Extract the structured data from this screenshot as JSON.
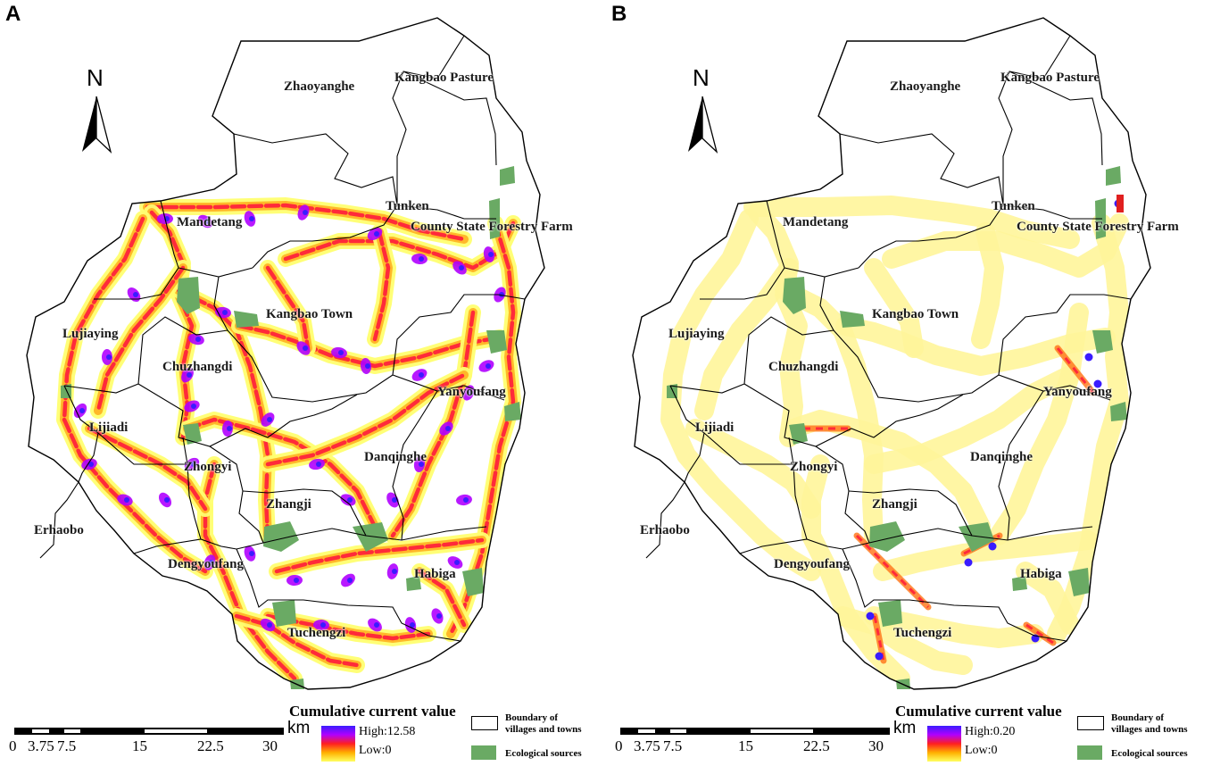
{
  "panels": [
    {
      "letter": "A",
      "towns": [
        "Zhaoyanghe",
        "Kangbao Pasture",
        "Tunken",
        "Mandetang",
        "County State Forestry Farm",
        "Kangbao Town",
        "Lujiaying",
        "Chuzhangdi",
        "Yanyoufang",
        "Lijiadi",
        "Danqinghe",
        "Zhongyi",
        "Zhangji",
        "Erhaobo",
        "Dengyoufang",
        "Habiga",
        "Tuchengzi"
      ],
      "legend_title": "Cumulative current value",
      "high_label": "High:12.58",
      "low_label": "Low:0",
      "intensity": "high"
    },
    {
      "letter": "B",
      "towns": [
        "Zhaoyanghe",
        "Kangbao Pasture",
        "Tunken",
        "Mandetang",
        "County State Forestry Farm",
        "Kangbao Town",
        "Lujiaying",
        "Chuzhangdi",
        "Yanyoufang",
        "Lijiadi",
        "Danqinghe",
        "Zhongyi",
        "Zhangji",
        "Erhaobo",
        "Dengyoufang",
        "Habiga",
        "Tuchengzi"
      ],
      "legend_title": "Cumulative current value",
      "high_label": "High:0.20",
      "low_label": "Low:0",
      "intensity": "low"
    }
  ],
  "north_label": "N",
  "scale_bar": {
    "ticks": [
      "0",
      "3.75",
      "7.5",
      "15",
      "22.5",
      "30"
    ],
    "unit": "km"
  },
  "legend": {
    "boundary_label_1": "Boundary of",
    "boundary_label_2": "villages and towns",
    "eco_label": "Ecological sources"
  },
  "colors": {
    "boundary": "#000000",
    "eco_source": "#6aaa64",
    "high": "#3a1cff",
    "mid": "#ff2020",
    "low": "#ffff60"
  }
}
